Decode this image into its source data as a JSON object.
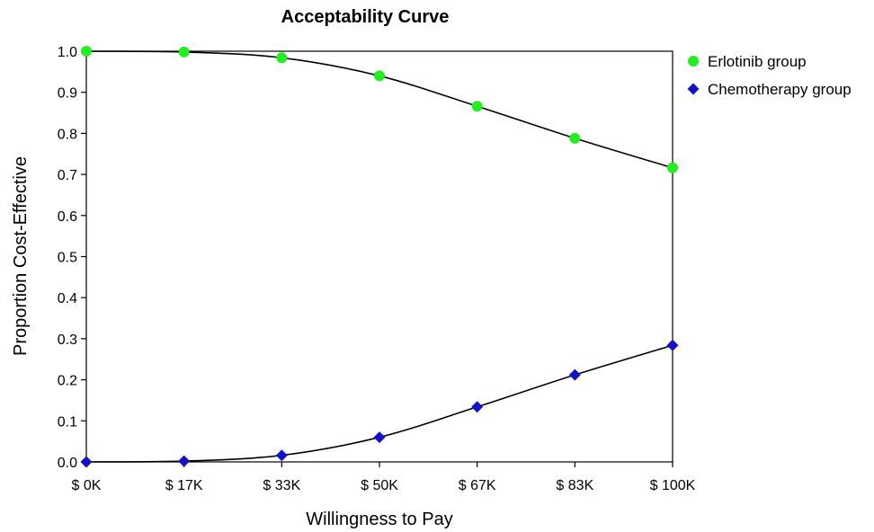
{
  "chart_data": {
    "type": "line",
    "title": "Acceptability Curve",
    "xlabel": "Willingness to Pay",
    "ylabel": "Proportion Cost-Effective",
    "categories": [
      "$ 0K",
      "$ 17K",
      "$ 33K",
      "$ 50K",
      "$ 67K",
      "$ 83K",
      "$ 100K"
    ],
    "ylim": [
      0,
      1
    ],
    "yticks": [
      "0.0",
      "0.1",
      "0.2",
      "0.3",
      "0.4",
      "0.5",
      "0.6",
      "0.7",
      "0.8",
      "0.9",
      "1.0"
    ],
    "legend_position": "top-right",
    "grid": false,
    "series": [
      {
        "name": "Erlotinib group",
        "marker": "circle",
        "color": "#22ee22",
        "values": [
          1.0,
          0.998,
          0.984,
          0.94,
          0.866,
          0.788,
          0.716
        ]
      },
      {
        "name": "Chemotherapy group",
        "marker": "diamond",
        "color": "#1212c8",
        "values": [
          0.0,
          0.002,
          0.016,
          0.06,
          0.134,
          0.212,
          0.284
        ]
      }
    ]
  }
}
